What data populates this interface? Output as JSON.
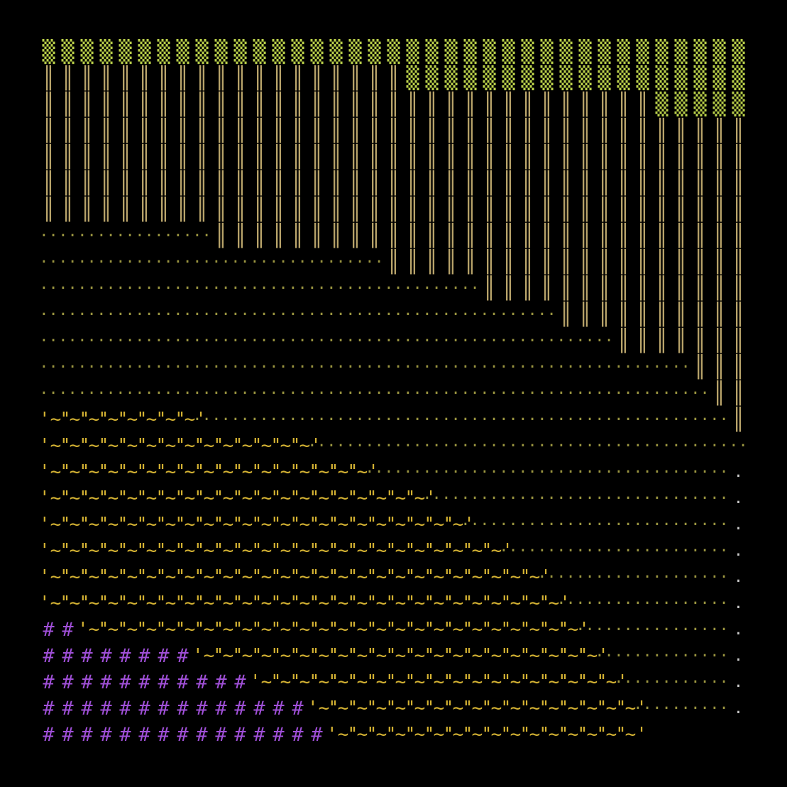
{
  "canvas": {
    "background": "#000000",
    "columns": 37,
    "rows": 27
  },
  "glyph_colors": {
    "block": "#b9cf4a",
    "bar": "#b8a36a",
    "dots": "#9a9540",
    "wave": "#d4b233",
    "hash": "#a050d8",
    "dot": "#c8c8c8"
  },
  "glyphs": {
    "block": "▒",
    "bar": "║",
    "dots": "··",
    "wave": "'~'",
    "hash": "#",
    "dot": "."
  },
  "rows": [
    "BBBBBBBBBBBBBBBBBBBBBBBBBBBBBBBBBBBBB",
    "VVVVVVVVVVVVVVVVVVVBBBBBBBBBBBBBBBBBB",
    "VVVVVVVVVVVVVVVVVVVVVVVVVVVVVVVVBBBBB",
    "VVVVVVVVVVVVVVVVVVVVVVVVVVVVVVVVVVVVV",
    "VVVVVVVVVVVVVVVVVVVVVVVVVVVVVVVVVVVVV",
    "VVVVVVVVVVVVVVVVVVVVVVVVVVVVVVVVVVVVV",
    "VVVVVVVVVVVVVVVVVVVVVVVVVVVVVVVVVVVVV",
    "DDDDDDDDDVVVVVVVVVVVVVVVVVVVVVVVVVVVV",
    "DDDDDDDDDDDDDDDDDDVVVVVVVVVVVVVVVVVVV",
    "DDDDDDDDDDDDDDDDDDDDDDDVVVVVVVVVVVVVV",
    "DDDDDDDDDDDDDDDDDDDDDDDDDDDVVVVVVVVVV",
    "DDDDDDDDDDDDDDDDDDDDDDDDDDDDDDVVVVVVV",
    "DDDDDDDDDDDDDDDDDDDDDDDDDDDDDDDDDDVVV",
    "DDDDDDDDDDDDDDDDDDDDDDDDDDDDDDDDDDDVV",
    "WWWWWWWWDDDDDDDDDDDDDDDDDDDDDDDDDDDDV",
    "WWWWWWWWWWWWWWDDDDDDDDDDDDDDDDDDDDDDD",
    "WWWWWWWWWWWWWWWWWDDDDDDDDDDDDDDDDDDDP",
    "WWWWWWWWWWWWWWWWWWWWDDDDDDDDDDDDDDDDP",
    "WWWWWWWWWWWWWWWWWWWWWWDDDDDDDDDDDDDDP",
    "WWWWWWWWWWWWWWWWWWWWWWWWDDDDDDDDDDDDP",
    "WWWWWWWWWWWWWWWWWWWWWWWWWWDDDDDDDDDDP",
    "WWWWWWWWWWWWWWWWWWWWWWWWWWWDDDDDDDDDP",
    "HHWWWWWWWWWWWWWWWWWWWWWWWWWWDDDDDDDDP",
    "HHHHHHHHWWWWWWWWWWWWWWWWWWWWWDDDDDDDP",
    "HHHHHHHHHHHWWWWWWWWWWWWWWWWWWWDDDDDDP",
    "HHHHHHHHHHHHHHWWWWWWWWWWWWWWWWWDDDDDP",
    "HHHHHHHHHHHHHHHWWWWWWWWWWWWWWWW      "
  ]
}
